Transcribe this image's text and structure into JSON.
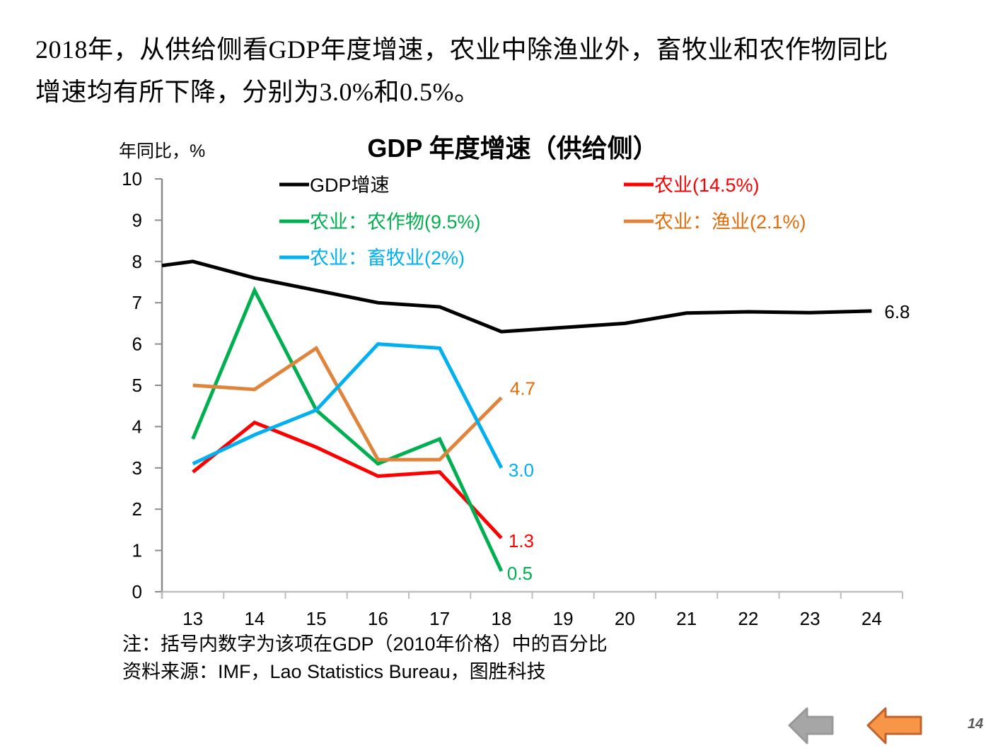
{
  "headline": {
    "line1": "2018年，从供给侧看GDP年度增速，农业中除渔业外，畜牧业和农作物同比",
    "line2": "增速均有所下降，分别为3.0%和0.5%。"
  },
  "chart_data": {
    "type": "line",
    "title": "GDP 年度增速（供给侧）",
    "ylabel": "年同比，%",
    "xlabel": "",
    "ylim": [
      0,
      10
    ],
    "yticks": [
      "0",
      "1",
      "2",
      "3",
      "4",
      "5",
      "6",
      "7",
      "8",
      "9",
      "10"
    ],
    "categories": [
      "13",
      "14",
      "15",
      "16",
      "17",
      "18",
      "19",
      "20",
      "21",
      "22",
      "23",
      "24"
    ],
    "start_value_note": "GDP line begins at the left axis edge (value before year 13)",
    "grid": false,
    "legend_position": "top, inside plot, two columns",
    "series": [
      {
        "name": "GDP增速",
        "color": "#000000",
        "start_edge_value": 7.9,
        "values": [
          8.0,
          7.6,
          7.3,
          7.0,
          6.9,
          6.3,
          6.4,
          6.5,
          6.75,
          6.78,
          6.76,
          6.8
        ],
        "end_label": "6.8",
        "label_color": "#000000"
      },
      {
        "name": "农业(14.5%)",
        "color": "#ff0000",
        "values": [
          2.9,
          4.1,
          3.5,
          2.8,
          2.9,
          1.3,
          null,
          null,
          null,
          null,
          null,
          null
        ],
        "end_label": "1.3",
        "label_color": "#ff0000"
      },
      {
        "name": "农业：农作物(9.5%)",
        "color": "#00b050",
        "values": [
          3.7,
          7.3,
          4.4,
          3.1,
          3.7,
          0.5,
          null,
          null,
          null,
          null,
          null,
          null
        ],
        "end_label": "0.5",
        "label_color": "#00b050"
      },
      {
        "name": "农业：渔业(2.1%)",
        "color": "#e0843c",
        "values": [
          5.0,
          4.9,
          5.9,
          3.2,
          3.2,
          4.7,
          null,
          null,
          null,
          null,
          null,
          null
        ],
        "end_label": "4.7",
        "label_color": "#e36c0a"
      },
      {
        "name": "农业：畜牧业(2%)",
        "color": "#00b0f0",
        "values": [
          3.1,
          3.8,
          4.4,
          6.0,
          5.9,
          3.0,
          null,
          null,
          null,
          null,
          null,
          null
        ],
        "end_label": "3.0",
        "label_color": "#00b0f0"
      }
    ]
  },
  "notes": {
    "note": "注：括号内数字为该项在GDP（2010年价格）中的百分比",
    "source": "资料来源：IMF，Lao Statistics Bureau，图胜科技"
  },
  "navigation": {
    "prev_label": "previous-slide",
    "back_label": "back",
    "page_number": "14",
    "prev_color": "#a6a6a6",
    "back_color": "#f79646"
  }
}
